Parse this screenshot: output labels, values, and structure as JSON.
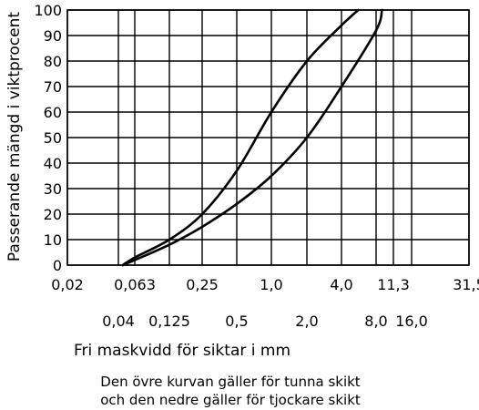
{
  "chart_data": {
    "type": "line",
    "title": "",
    "xlabel": "Fri maskvidd för siktar i mm",
    "ylabel": "Passerande mängd i viktprocent",
    "x_scale": "log",
    "xlim": [
      0.02,
      31.5
    ],
    "ylim": [
      0,
      100
    ],
    "x_ticks_upper": [
      "0,02",
      "0,063",
      "0,25",
      "1,0",
      "4,0",
      "11,3",
      "31,5"
    ],
    "x_ticks_lower": [
      "0,04",
      "0,125",
      "0,5",
      "2,0",
      "8,0",
      "16,0"
    ],
    "y_ticks": [
      "0",
      "10",
      "20",
      "30",
      "40",
      "50",
      "60",
      "70",
      "80",
      "90",
      "100"
    ],
    "grid": true,
    "caption": [
      "Den övre kurvan gäller för tunna skikt",
      "och den nedre gäller för tjockare skikt"
    ],
    "series": [
      {
        "x": [
          0.045,
          0.063,
          0.125,
          0.25,
          0.5,
          1.0,
          2.0,
          4.0,
          5.6
        ],
        "y": [
          0,
          3,
          10,
          20,
          37,
          60,
          80,
          94,
          100
        ]
      },
      {
        "x": [
          0.045,
          0.063,
          0.125,
          0.25,
          0.5,
          1.0,
          2.0,
          4.0,
          8.0,
          9.0
        ],
        "y": [
          0,
          2,
          8,
          15,
          24,
          35,
          50,
          70,
          92,
          100
        ]
      }
    ]
  }
}
